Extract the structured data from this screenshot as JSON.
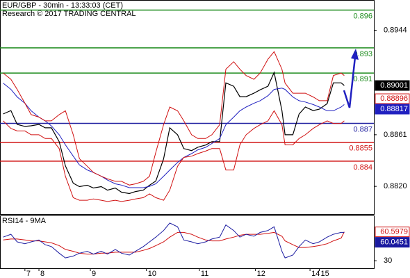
{
  "chart_data": [
    {
      "type": "line",
      "title": "EUR/GBP - 30min - 13:33:03 (CET)",
      "subtitle": "Research © 2017 TRADING CENTRAL",
      "x": [
        2,
        7,
        11,
        16,
        20,
        25,
        29,
        33,
        38,
        42,
        47,
        51,
        56,
        60,
        65,
        69,
        74,
        78,
        83,
        87,
        92,
        96,
        100,
        105,
        109,
        114,
        118,
        123,
        127,
        132,
        136,
        141,
        145,
        150,
        154,
        158,
        163,
        167,
        172,
        176,
        181,
        183,
        188,
        192,
        196,
        201,
        205,
        210,
        214,
        219,
        221
      ],
      "xlim": [
        0,
        240
      ],
      "ylim": [
        0.8798,
        0.8968
      ],
      "yticks": [
        0.8944,
        0.8861,
        {
          "value": 0.882,
          "label": "0.8820"
        }
      ],
      "series": [
        {
          "color": "#000000",
          "width": 1.2,
          "values": [
            0.88775,
            0.88802,
            0.88692,
            0.88676,
            0.88681,
            0.88692,
            0.88665,
            0.88665,
            0.88555,
            0.88363,
            0.88225,
            0.88198,
            0.88209,
            0.88187,
            0.88198,
            0.8817,
            0.88187,
            0.88154,
            0.88143,
            0.88159,
            0.8817,
            0.88209,
            0.88242,
            0.88418,
            0.88665,
            0.8861,
            0.885,
            0.88484,
            0.88511,
            0.88528,
            0.88555,
            0.88555,
            0.89022,
            0.88995,
            0.88912,
            0.88912,
            0.8894,
            0.88967,
            0.88995,
            0.89105,
            0.88802,
            0.8861,
            0.8861,
            0.88775,
            0.8883,
            0.88802,
            0.88813,
            0.88857,
            0.89022,
            0.89022,
            0.89001
          ]
        },
        {
          "color": "#2020c0",
          "width": 1,
          "values": [
            0.8902,
            0.8897,
            0.8891,
            0.8886,
            0.888,
            0.8875,
            0.8872,
            0.8868,
            0.8861,
            0.8853,
            0.8844,
            0.8837,
            0.8833,
            0.8831,
            0.8828,
            0.8825,
            0.8822,
            0.8821,
            0.8819,
            0.8819,
            0.8819,
            0.882,
            0.8822,
            0.8828,
            0.8833,
            0.8839,
            0.8843,
            0.8846,
            0.8849,
            0.8851,
            0.8854,
            0.8858,
            0.8869,
            0.8875,
            0.888,
            0.8883,
            0.8886,
            0.8888,
            0.8892,
            0.8897,
            0.8898,
            0.8897,
            0.8891,
            0.8888,
            0.8887,
            0.8885,
            0.8883,
            0.888,
            0.888,
            0.8883,
            0.8885
          ]
        },
        {
          "color": "#d01010",
          "width": 1,
          "values": [
            0.891,
            0.8905,
            0.8897,
            0.8886,
            0.8877,
            0.8875,
            0.8872,
            0.8872,
            0.8877,
            0.888,
            0.8861,
            0.8842,
            0.8836,
            0.8831,
            0.8828,
            0.8826,
            0.8824,
            0.8824,
            0.8821,
            0.8822,
            0.8824,
            0.8828,
            0.8847,
            0.8869,
            0.8883,
            0.888,
            0.8872,
            0.8861,
            0.8858,
            0.8858,
            0.8861,
            0.8869,
            0.8913,
            0.8919,
            0.8913,
            0.8908,
            0.8905,
            0.891,
            0.8921,
            0.8927,
            0.8913,
            0.8902,
            0.8894,
            0.8894,
            0.8894,
            0.8891,
            0.8888,
            0.8888,
            0.8908,
            0.891,
            0.8908
          ]
        },
        {
          "color": "#d01010",
          "width": 1,
          "values": [
            0.8872,
            0.8866,
            0.8864,
            0.8864,
            0.8861,
            0.8861,
            0.8858,
            0.8858,
            0.885,
            0.8828,
            0.8811,
            0.8809,
            0.8809,
            0.881,
            0.8809,
            0.8808,
            0.8809,
            0.8808,
            0.8809,
            0.881,
            0.8811,
            0.8814,
            0.8811,
            0.8809,
            0.8817,
            0.8836,
            0.8843,
            0.8844,
            0.8846,
            0.8848,
            0.885,
            0.885,
            0.8833,
            0.8833,
            0.8853,
            0.8861,
            0.8866,
            0.8869,
            0.8872,
            0.888,
            0.8869,
            0.8853,
            0.8853,
            0.8858,
            0.8861,
            0.8866,
            0.8869,
            0.8872,
            0.887,
            0.887,
            0.8872
          ]
        }
      ],
      "levels": [
        {
          "value": 0.896,
          "color": "#1e8c1e"
        },
        {
          "value": 0.893,
          "color": "#1e8c1e"
        },
        {
          "value": 0.891,
          "color": "#1e8c1e"
        },
        {
          "value": 0.887,
          "color": "#2020a0"
        },
        {
          "value": 0.8855,
          "color": "#d01010"
        },
        {
          "value": 0.884,
          "color": "#d01010"
        }
      ],
      "price_tags": [
        {
          "value": 0.89001,
          "color": "#000000",
          "filled": true
        },
        {
          "value": 0.88896,
          "color": "#d01010",
          "filled": false
        },
        {
          "value": 0.88817,
          "color": "#2020c0",
          "filled": true
        }
      ]
    },
    {
      "type": "line",
      "title": "RSI14 - 9MA",
      "x": [
        2,
        7,
        11,
        16,
        20,
        25,
        29,
        33,
        38,
        42,
        47,
        51,
        56,
        60,
        65,
        69,
        74,
        78,
        83,
        87,
        92,
        96,
        100,
        105,
        109,
        114,
        118,
        123,
        127,
        132,
        136,
        141,
        145,
        150,
        154,
        158,
        163,
        167,
        172,
        176,
        181,
        183,
        188,
        192,
        196,
        201,
        205,
        210,
        214,
        219,
        221
      ],
      "xlim": [
        0,
        240
      ],
      "xticks": [
        {
          "value": 16,
          "label": "7"
        },
        {
          "value": 25,
          "label": "8"
        },
        {
          "value": 58,
          "label": "9"
        },
        {
          "value": 94,
          "label": "10"
        },
        {
          "value": 128,
          "label": "11"
        },
        {
          "value": 164,
          "label": "12"
        },
        {
          "value": 199,
          "label": "14"
        },
        {
          "value": 205,
          "label": "15"
        }
      ],
      "ylim": [
        22,
        78
      ],
      "yticks": [
        30
      ],
      "series": [
        {
          "color": "#d01010",
          "width": 1,
          "tag_filled": false,
          "values": [
            52,
            53,
            53,
            52,
            51,
            51,
            50,
            49,
            46,
            42,
            40,
            38,
            37,
            37,
            38,
            38,
            39,
            39,
            39,
            39,
            41,
            43,
            46,
            50,
            55,
            60,
            60,
            58,
            55,
            52,
            51,
            51,
            53,
            55,
            57,
            58,
            58,
            58,
            59,
            60,
            56,
            51,
            47,
            44,
            44,
            45,
            46,
            48,
            51,
            54,
            60.5979
          ]
        },
        {
          "color": "#1a1aa0",
          "width": 1,
          "tag_filled": true,
          "values": [
            55,
            58,
            50,
            48,
            50,
            52,
            47,
            45,
            38,
            33,
            35,
            38,
            40,
            37,
            40,
            37,
            42,
            38,
            36,
            40,
            45,
            50,
            55,
            62,
            70,
            66,
            52,
            50,
            48,
            50,
            53,
            55,
            68,
            62,
            55,
            58,
            56,
            60,
            62,
            66,
            40,
            33,
            36,
            45,
            52,
            48,
            50,
            55,
            58,
            60,
            60.0451
          ]
        }
      ]
    }
  ]
}
